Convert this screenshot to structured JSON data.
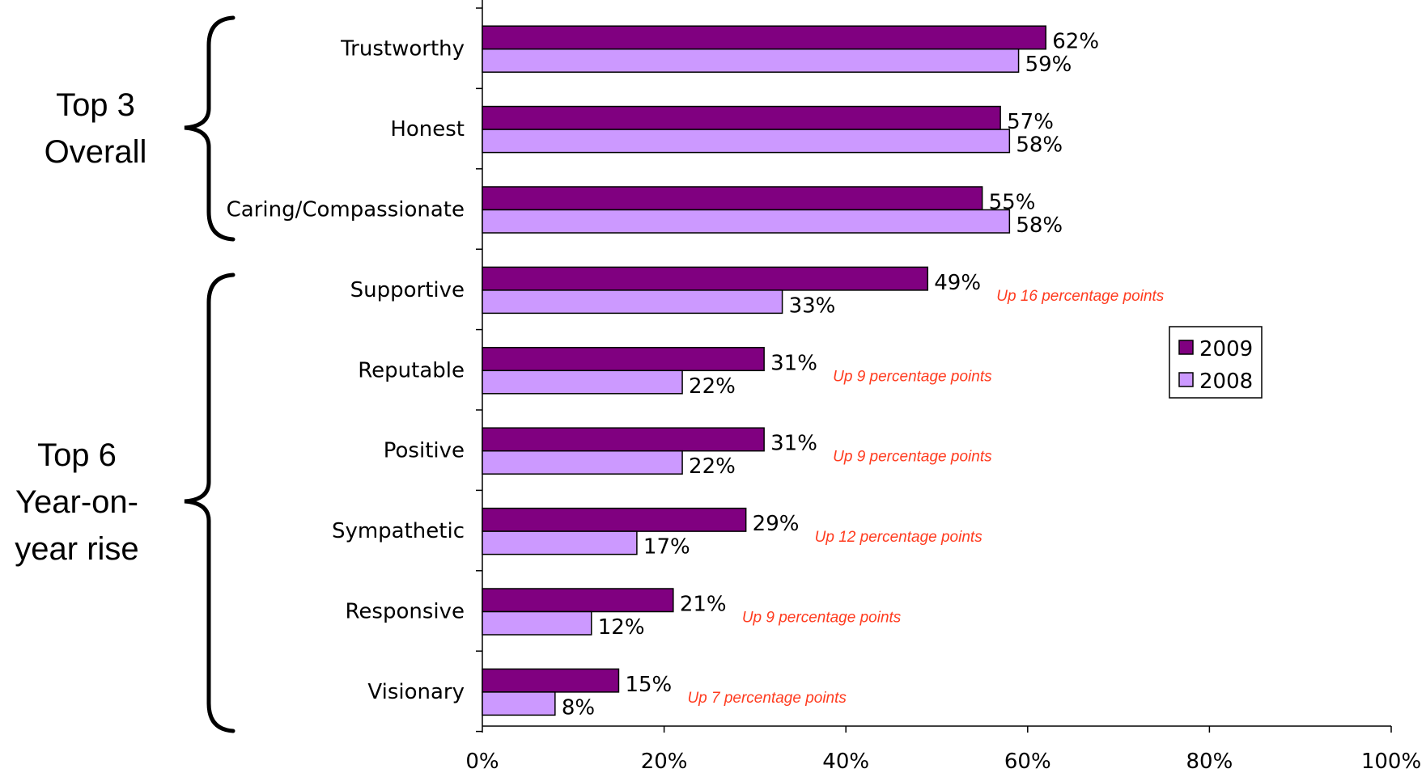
{
  "chart_data": {
    "type": "bar",
    "orientation": "horizontal",
    "categories": [
      "Trustworthy",
      "Honest",
      "Caring/Compassionate",
      "Supportive",
      "Reputable",
      "Positive",
      "Sympathetic",
      "Responsive",
      "Visionary"
    ],
    "series": [
      {
        "name": "2009",
        "values": [
          62,
          57,
          55,
          49,
          31,
          31,
          29,
          21,
          15
        ],
        "color": "#800080"
      },
      {
        "name": "2008",
        "values": [
          59,
          58,
          58,
          33,
          22,
          22,
          17,
          12,
          8
        ],
        "color": "#cc99ff"
      }
    ],
    "value_labels": {
      "2009": [
        "62%",
        "57%",
        "55%",
        "49%",
        "31%",
        "31%",
        "29%",
        "21%",
        "15%"
      ],
      "2008": [
        "59%",
        "58%",
        "58%",
        "33%",
        "22%",
        "22%",
        "17%",
        "12%",
        "8%"
      ]
    },
    "annotations": [
      "",
      "",
      "",
      "Up 16 percentage points",
      "Up 9 percentage points",
      "Up 9 percentage points",
      "Up 12 percentage points",
      "Up 9 percentage points",
      "Up 7 percentage points"
    ],
    "annotation_color": "#ff3b1f",
    "xlim": [
      0,
      100
    ],
    "xticks": [
      "0%",
      "20%",
      "40%",
      "60%",
      "80%",
      "100%"
    ],
    "grid": false,
    "legend_position": "right",
    "groups": [
      {
        "label_lines": [
          "Top 3",
          "Overall"
        ],
        "categories": [
          "Trustworthy",
          "Honest",
          "Caring/Compassionate"
        ]
      },
      {
        "label_lines": [
          "Top 6",
          "Year-on-",
          "year rise"
        ],
        "categories": [
          "Supportive",
          "Reputable",
          "Positive",
          "Sympathetic",
          "Responsive",
          "Visionary"
        ]
      }
    ]
  }
}
